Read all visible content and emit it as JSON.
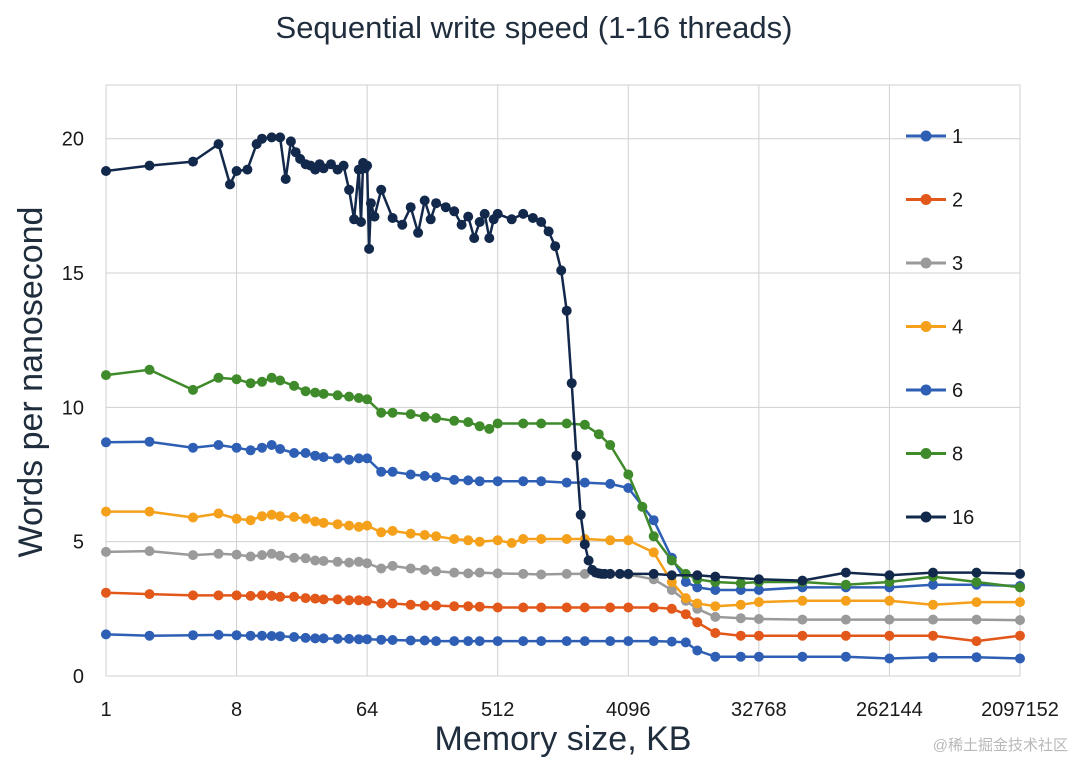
{
  "chart_data": {
    "type": "line",
    "title": "Sequential write speed (1-16 threads)",
    "xlabel": "Memory size, KB",
    "ylabel": "Words per nanosecond",
    "x_scale": "log2",
    "xlim": [
      1,
      2097152
    ],
    "ylim": [
      0,
      22
    ],
    "x_ticks": [
      1,
      8,
      64,
      512,
      4096,
      32768,
      262144,
      2097152
    ],
    "x_tick_labels": [
      "1",
      "8",
      "64",
      "512",
      "4096",
      "32768",
      "262144",
      "2097152"
    ],
    "y_ticks": [
      0,
      5,
      10,
      15,
      20
    ],
    "y_tick_labels": [
      "0",
      "5",
      "10",
      "15",
      "20"
    ],
    "grid": true,
    "legend_position": "right",
    "series": [
      {
        "name": "1",
        "color": "#2e5fb4",
        "x": [
          1,
          2,
          4,
          6,
          8,
          10,
          12,
          14,
          16,
          20,
          24,
          28,
          32,
          40,
          48,
          56,
          64,
          80,
          96,
          128,
          160,
          192,
          256,
          320,
          384,
          512,
          768,
          1024,
          1536,
          2048,
          3072,
          4096,
          6144,
          8192,
          10240,
          12288,
          16384,
          24576,
          32768,
          65536,
          131072,
          262144,
          524288,
          1048576,
          2097152
        ],
        "y": [
          1.55,
          1.5,
          1.52,
          1.53,
          1.52,
          1.5,
          1.5,
          1.49,
          1.48,
          1.45,
          1.42,
          1.4,
          1.4,
          1.38,
          1.38,
          1.37,
          1.37,
          1.35,
          1.34,
          1.32,
          1.32,
          1.3,
          1.3,
          1.3,
          1.3,
          1.3,
          1.3,
          1.3,
          1.3,
          1.3,
          1.3,
          1.3,
          1.3,
          1.28,
          1.25,
          0.95,
          0.72,
          0.72,
          0.72,
          0.72,
          0.72,
          0.65,
          0.7,
          0.7,
          0.65
        ]
      },
      {
        "name": "2",
        "color": "#e2571a",
        "x": [
          1,
          2,
          4,
          6,
          8,
          10,
          12,
          14,
          16,
          20,
          24,
          28,
          32,
          40,
          48,
          56,
          64,
          80,
          96,
          128,
          160,
          192,
          256,
          320,
          384,
          512,
          768,
          1024,
          1536,
          2048,
          3072,
          4096,
          6144,
          8192,
          10240,
          12288,
          16384,
          24576,
          32768,
          65536,
          131072,
          262144,
          524288,
          1048576,
          2097152
        ],
        "y": [
          3.1,
          3.05,
          3.0,
          3.0,
          3.0,
          2.98,
          3.0,
          2.98,
          2.95,
          2.95,
          2.9,
          2.88,
          2.85,
          2.85,
          2.82,
          2.82,
          2.8,
          2.7,
          2.7,
          2.65,
          2.62,
          2.62,
          2.6,
          2.6,
          2.58,
          2.55,
          2.55,
          2.55,
          2.55,
          2.55,
          2.55,
          2.55,
          2.55,
          2.5,
          2.3,
          2.0,
          1.6,
          1.5,
          1.5,
          1.5,
          1.5,
          1.5,
          1.5,
          1.3,
          1.5
        ]
      },
      {
        "name": "3",
        "color": "#9a9a9a",
        "x": [
          1,
          2,
          4,
          6,
          8,
          10,
          12,
          14,
          16,
          20,
          24,
          28,
          32,
          40,
          48,
          56,
          64,
          80,
          96,
          128,
          160,
          192,
          256,
          320,
          384,
          512,
          768,
          1024,
          1536,
          2048,
          3072,
          4096,
          6144,
          8192,
          10240,
          12288,
          16384,
          24576,
          32768,
          65536,
          131072,
          262144,
          524288,
          1048576,
          2097152
        ],
        "y": [
          4.62,
          4.65,
          4.5,
          4.55,
          4.52,
          4.45,
          4.5,
          4.55,
          4.48,
          4.4,
          4.38,
          4.3,
          4.28,
          4.25,
          4.22,
          4.25,
          4.2,
          4.0,
          4.1,
          4.0,
          3.95,
          3.9,
          3.85,
          3.82,
          3.85,
          3.82,
          3.8,
          3.78,
          3.8,
          3.8,
          3.8,
          3.78,
          3.6,
          3.2,
          2.8,
          2.5,
          2.2,
          2.15,
          2.12,
          2.1,
          2.1,
          2.1,
          2.1,
          2.1,
          2.08
        ]
      },
      {
        "name": "4",
        "color": "#f5a01a",
        "x": [
          1,
          2,
          4,
          6,
          8,
          10,
          12,
          14,
          16,
          20,
          24,
          28,
          32,
          40,
          48,
          56,
          64,
          80,
          96,
          128,
          160,
          192,
          256,
          320,
          384,
          512,
          640,
          768,
          1024,
          1536,
          2048,
          3072,
          4096,
          6144,
          8192,
          10240,
          12288,
          16384,
          24576,
          32768,
          65536,
          131072,
          262144,
          524288,
          1048576,
          2097152
        ],
        "y": [
          6.12,
          6.12,
          5.9,
          6.05,
          5.85,
          5.8,
          5.95,
          6.0,
          5.95,
          5.92,
          5.85,
          5.75,
          5.7,
          5.65,
          5.6,
          5.55,
          5.6,
          5.35,
          5.4,
          5.3,
          5.25,
          5.2,
          5.1,
          5.05,
          5.0,
          5.05,
          4.95,
          5.1,
          5.1,
          5.1,
          5.1,
          5.05,
          5.05,
          4.6,
          3.5,
          2.9,
          2.7,
          2.6,
          2.65,
          2.75,
          2.8,
          2.8,
          2.8,
          2.65,
          2.75,
          2.75
        ]
      },
      {
        "name": "6",
        "color": "#2e5fb4",
        "x": [
          1,
          2,
          4,
          6,
          8,
          10,
          12,
          14,
          16,
          20,
          24,
          28,
          32,
          40,
          48,
          56,
          64,
          80,
          96,
          128,
          160,
          192,
          256,
          320,
          384,
          512,
          768,
          1024,
          1536,
          2048,
          3072,
          4096,
          6144,
          8192,
          10240,
          12288,
          16384,
          24576,
          32768,
          65536,
          131072,
          262144,
          524288,
          1048576,
          2097152
        ],
        "y": [
          8.7,
          8.72,
          8.5,
          8.6,
          8.5,
          8.4,
          8.5,
          8.6,
          8.45,
          8.3,
          8.3,
          8.2,
          8.15,
          8.1,
          8.05,
          8.1,
          8.1,
          7.6,
          7.6,
          7.5,
          7.45,
          7.4,
          7.3,
          7.28,
          7.25,
          7.25,
          7.25,
          7.25,
          7.2,
          7.2,
          7.15,
          7.0,
          5.8,
          4.4,
          3.5,
          3.3,
          3.2,
          3.2,
          3.2,
          3.3,
          3.3,
          3.3,
          3.4,
          3.4,
          3.35
        ]
      },
      {
        "name": "8",
        "color": "#3f8a2a",
        "x": [
          1,
          2,
          4,
          6,
          8,
          10,
          12,
          14,
          16,
          20,
          24,
          28,
          32,
          40,
          48,
          56,
          64,
          80,
          96,
          128,
          160,
          192,
          256,
          320,
          384,
          448,
          512,
          768,
          1024,
          1536,
          2048,
          2560,
          3072,
          4096,
          5120,
          6144,
          8192,
          10240,
          12288,
          16384,
          24576,
          32768,
          65536,
          131072,
          262144,
          524288,
          1048576,
          2097152
        ],
        "y": [
          11.2,
          11.4,
          10.65,
          11.1,
          11.05,
          10.9,
          10.95,
          11.1,
          11.0,
          10.8,
          10.6,
          10.55,
          10.5,
          10.45,
          10.4,
          10.35,
          10.3,
          9.8,
          9.8,
          9.75,
          9.65,
          9.6,
          9.5,
          9.45,
          9.3,
          9.2,
          9.4,
          9.4,
          9.4,
          9.4,
          9.35,
          9.0,
          8.6,
          7.5,
          6.3,
          5.2,
          4.3,
          3.8,
          3.6,
          3.5,
          3.45,
          3.5,
          3.5,
          3.4,
          3.5,
          3.7,
          3.5,
          3.3
        ]
      },
      {
        "name": "16",
        "color": "#13294b",
        "x": [
          1,
          2,
          4,
          6,
          7.2,
          8,
          9.5,
          11,
          12,
          14,
          16,
          17.5,
          19,
          20.5,
          22,
          24,
          26,
          28,
          30,
          32,
          36,
          40,
          44,
          48,
          52,
          56,
          58,
          60,
          62,
          64,
          66,
          68,
          72,
          80,
          96,
          112,
          128,
          144,
          160,
          176,
          192,
          224,
          256,
          288,
          320,
          352,
          384,
          416,
          448,
          480,
          512,
          640,
          768,
          896,
          1024,
          1152,
          1280,
          1408,
          1536,
          1664,
          1792,
          1920,
          2048,
          2176,
          2304,
          2432,
          2560,
          2688,
          2816,
          3072,
          3584,
          4096,
          6144,
          8192,
          12288,
          16384,
          32768,
          65536,
          131072,
          262144,
          524288,
          1048576,
          2097152
        ],
        "y": [
          18.8,
          19.0,
          19.15,
          19.8,
          18.3,
          18.8,
          18.85,
          19.8,
          20.0,
          20.05,
          20.05,
          18.5,
          19.9,
          19.5,
          19.25,
          19.05,
          19.0,
          18.85,
          19.05,
          18.9,
          19.05,
          18.85,
          19.0,
          18.1,
          17.0,
          18.85,
          16.9,
          19.1,
          18.9,
          19.0,
          15.9,
          17.6,
          17.1,
          18.1,
          17.05,
          16.8,
          17.45,
          16.5,
          17.7,
          17.0,
          17.6,
          17.45,
          17.3,
          16.8,
          17.1,
          16.3,
          16.9,
          17.2,
          16.3,
          17.0,
          17.2,
          17.0,
          17.2,
          17.05,
          16.9,
          16.55,
          16.0,
          15.1,
          13.6,
          10.9,
          8.2,
          6.0,
          4.9,
          4.3,
          3.95,
          3.85,
          3.82,
          3.8,
          3.8,
          3.8,
          3.8,
          3.8,
          3.8,
          3.75,
          3.75,
          3.7,
          3.6,
          3.55,
          3.85,
          3.75,
          3.85,
          3.85,
          3.8
        ]
      }
    ]
  },
  "watermark": "@稀土掘金技术社区"
}
